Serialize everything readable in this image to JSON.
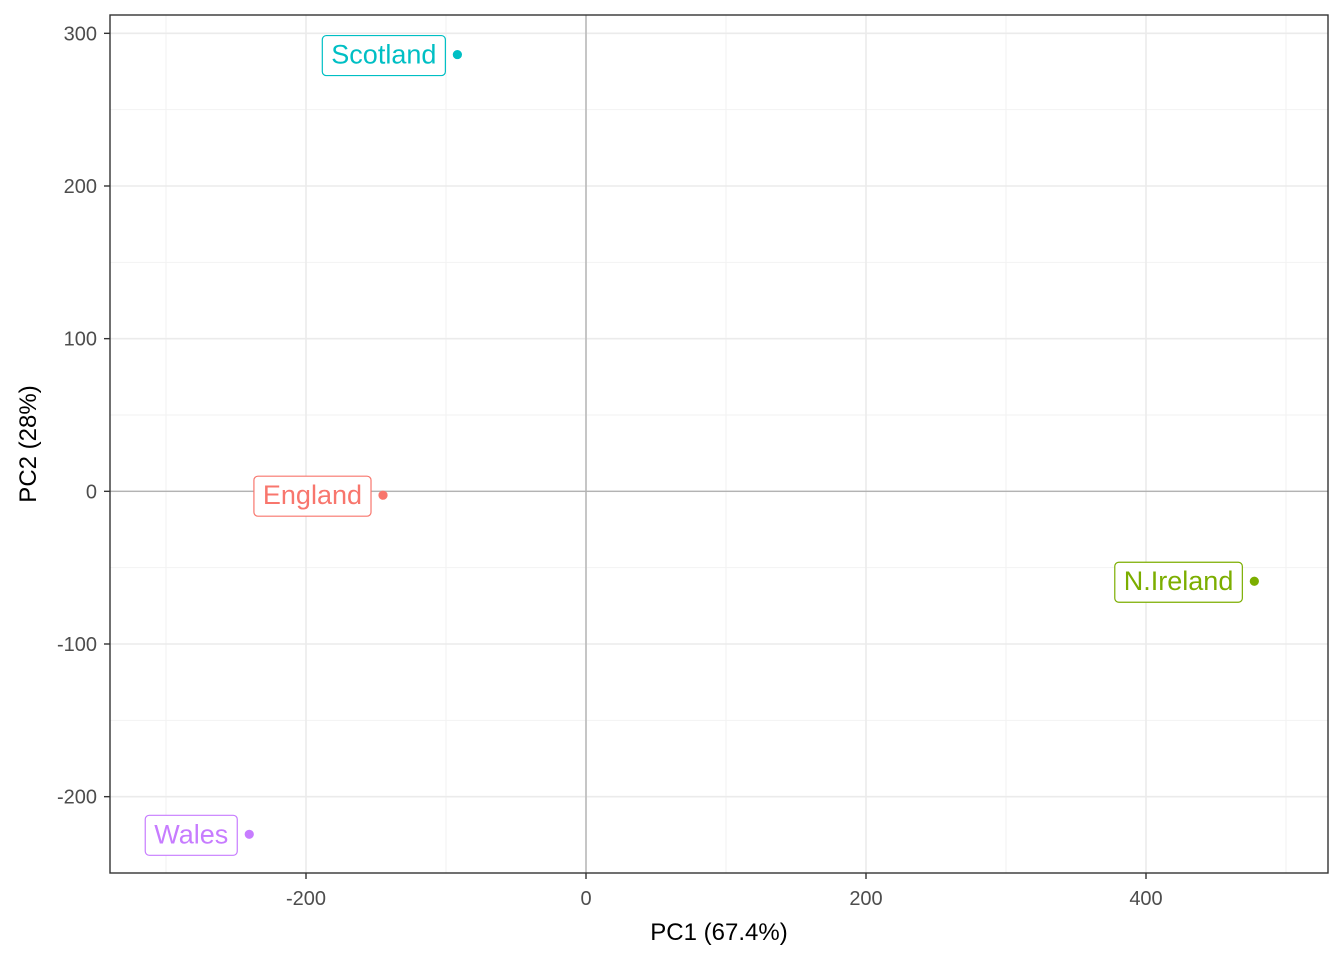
{
  "chart_data": {
    "type": "scatter",
    "title": "",
    "xlabel": "PC1 (67.4%)",
    "ylabel": "PC2 (28%)",
    "xlim": [
      -340,
      530
    ],
    "ylim": [
      -250,
      312
    ],
    "x_ticks": [
      -200,
      0,
      200,
      400
    ],
    "x_tick_labels": [
      "-200",
      "0",
      "200",
      "400"
    ],
    "y_ticks": [
      -200,
      -100,
      0,
      100,
      200,
      300
    ],
    "y_tick_labels": [
      "-200",
      "-100",
      "0",
      "100",
      "200",
      "300"
    ],
    "minor_x_ticks": [
      -300,
      -100,
      100,
      300,
      500
    ],
    "minor_y_ticks": [
      -250,
      -150,
      -50,
      50,
      150,
      250
    ],
    "reference_lines": {
      "x": 0,
      "y": 0
    },
    "grid": true,
    "legend": "none",
    "points": [
      {
        "label": "England",
        "x": -144.99,
        "y": -2.53,
        "color": "#F8766D"
      },
      {
        "label": "N.Ireland",
        "x": 477.39,
        "y": -58.9,
        "color": "#7CAE00"
      },
      {
        "label": "Scotland",
        "x": -91.87,
        "y": 286.08,
        "color": "#00BFC4"
      },
      {
        "label": "Wales",
        "x": -240.53,
        "y": -224.65,
        "color": "#C77CFF"
      }
    ]
  }
}
